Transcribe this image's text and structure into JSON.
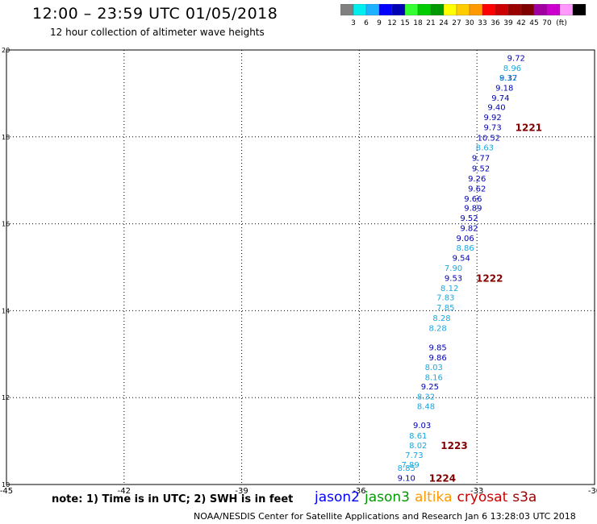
{
  "header": {
    "title": "12:00 – 23:59 UTC 01/05/2018",
    "subtitle": "12 hour collection of altimeter wave heights"
  },
  "color_scale": {
    "unit": "(ft)",
    "colors": [
      "#808080",
      "#00eeee",
      "#1cb2ff",
      "#0000ff",
      "#0000b4",
      "#33ff33",
      "#00cc00",
      "#009900",
      "#ffff00",
      "#ffcc00",
      "#ff9900",
      "#ff0000",
      "#cc0000",
      "#990000",
      "#800000",
      "#a000a0",
      "#cc00cc",
      "#ff99ff",
      "#000000"
    ],
    "labels": [
      "3",
      "6",
      "9",
      "12",
      "15",
      "18",
      "21",
      "24",
      "27",
      "30",
      "33",
      "36",
      "39",
      "42",
      "45",
      "70"
    ]
  },
  "notes": "note: 1) Time is in UTC; 2) SWH is in feet",
  "satellites": [
    {
      "name": "jason2",
      "color": "#0000ff"
    },
    {
      "name": "jason3",
      "color": "#009900"
    },
    {
      "name": "altika",
      "color": "#ff9900"
    },
    {
      "name": "cryosat",
      "color": "#cc0000"
    },
    {
      "name": "s3a",
      "color": "#990000"
    }
  ],
  "footer": "NOAA/NESDIS Center for Satellite Applications and Research    Jan  6 13:28:03 UTC 2018",
  "chart_data": {
    "type": "scatter",
    "xlim": [
      -45,
      -30
    ],
    "ylim": [
      10,
      20
    ],
    "x_ticks": [
      -45,
      -42,
      -39,
      -36,
      -33,
      -30
    ],
    "y_ticks": [
      10,
      12,
      14,
      16,
      18,
      20
    ],
    "grid": true,
    "series": [
      {
        "name": "jason2",
        "color": "#0000b4",
        "points": [
          {
            "x": -32.0,
            "y": 19.82,
            "label": "9.72"
          },
          {
            "x": -32.2,
            "y": 19.37,
            "label": "9.37"
          },
          {
            "x": -32.3,
            "y": 19.14,
            "label": "9.18"
          },
          {
            "x": -32.4,
            "y": 18.91,
            "label": "9.74"
          },
          {
            "x": -32.5,
            "y": 18.69,
            "label": "9.40"
          },
          {
            "x": -32.6,
            "y": 18.46,
            "label": "9.92"
          },
          {
            "x": -32.6,
            "y": 18.23,
            "label": "9.73"
          },
          {
            "x": -32.7,
            "y": 17.99,
            "label": "10.52"
          },
          {
            "x": -32.9,
            "y": 17.52,
            "label": "9.77"
          },
          {
            "x": -32.9,
            "y": 17.28,
            "label": "9.52"
          },
          {
            "x": -33.0,
            "y": 17.05,
            "label": "9.26"
          },
          {
            "x": -33.0,
            "y": 16.82,
            "label": "9.62"
          },
          {
            "x": -33.1,
            "y": 16.59,
            "label": "9.66"
          },
          {
            "x": -33.1,
            "y": 16.37,
            "label": "9.89"
          },
          {
            "x": -33.2,
            "y": 16.14,
            "label": "9.52"
          },
          {
            "x": -33.2,
            "y": 15.91,
            "label": "9.82"
          },
          {
            "x": -33.3,
            "y": 15.68,
            "label": "9.06"
          },
          {
            "x": -33.4,
            "y": 15.22,
            "label": "9.54"
          },
          {
            "x": -33.6,
            "y": 14.76,
            "label": "9.53"
          },
          {
            "x": -34.0,
            "y": 13.16,
            "label": "9.85"
          },
          {
            "x": -34.0,
            "y": 12.93,
            "label": "9.86"
          },
          {
            "x": -34.2,
            "y": 12.26,
            "label": "9.25"
          },
          {
            "x": -34.4,
            "y": 11.37,
            "label": "9.03"
          },
          {
            "x": -34.8,
            "y": 10.16,
            "label": "9.10"
          }
        ]
      },
      {
        "name": "jason3",
        "color": "#1aa7e0",
        "points": [
          {
            "x": -32.1,
            "y": 19.59,
            "label": "8.96"
          },
          {
            "x": -32.2,
            "y": 19.37,
            "label": "8.12"
          },
          {
            "x": -32.8,
            "y": 17.76,
            "label": "8.63"
          },
          {
            "x": -33.3,
            "y": 15.45,
            "label": "8.86"
          },
          {
            "x": -33.6,
            "y": 14.99,
            "label": "7.90"
          },
          {
            "x": -33.7,
            "y": 14.53,
            "label": "8.12"
          },
          {
            "x": -33.8,
            "y": 14.31,
            "label": "7.83"
          },
          {
            "x": -33.8,
            "y": 14.08,
            "label": "7.85"
          },
          {
            "x": -33.9,
            "y": 13.84,
            "label": "8.28"
          },
          {
            "x": -34.0,
            "y": 13.61,
            "label": "8.28"
          },
          {
            "x": -34.1,
            "y": 12.71,
            "label": "8.03"
          },
          {
            "x": -34.1,
            "y": 12.48,
            "label": "8.16"
          },
          {
            "x": -34.3,
            "y": 12.03,
            "label": "8.32"
          },
          {
            "x": -34.3,
            "y": 11.81,
            "label": "8.48"
          },
          {
            "x": -34.5,
            "y": 11.13,
            "label": "8.61"
          },
          {
            "x": -34.5,
            "y": 10.91,
            "label": "8.02"
          },
          {
            "x": -34.6,
            "y": 10.69,
            "label": "7.73"
          },
          {
            "x": -34.7,
            "y": 10.46,
            "label": "7.89"
          },
          {
            "x": -34.8,
            "y": 10.39,
            "label": "8.85"
          }
        ]
      }
    ],
    "annotations": [
      {
        "x": -32.6,
        "y": 18.23,
        "text": "1221"
      },
      {
        "x": -33.6,
        "y": 14.76,
        "text": "1222"
      },
      {
        "x": -34.5,
        "y": 10.91,
        "text": "1223"
      },
      {
        "x": -34.8,
        "y": 10.16,
        "text": "1224"
      }
    ]
  }
}
